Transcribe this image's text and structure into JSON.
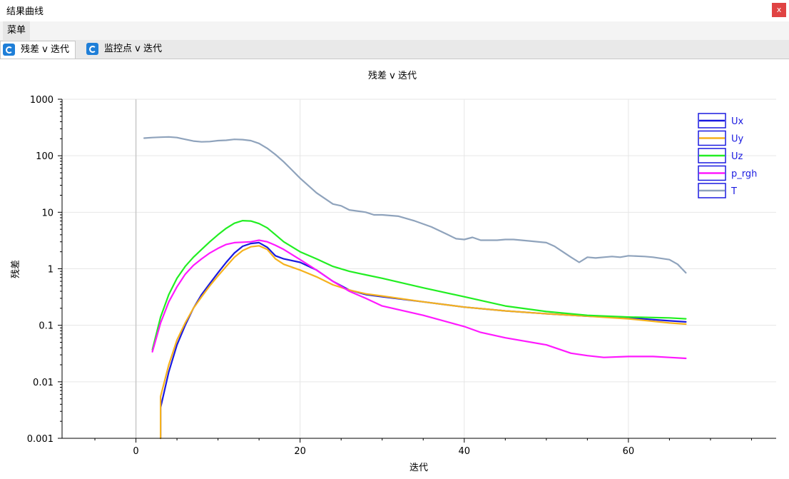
{
  "window": {
    "title": "结果曲线",
    "close_label": "x"
  },
  "menu": {
    "items": [
      "菜单"
    ]
  },
  "tabs": [
    {
      "label": "残差 v 迭代",
      "active": true
    },
    {
      "label": "监控点 v 迭代",
      "active": false
    }
  ],
  "chart_data": {
    "type": "line",
    "title": "残差 v 迭代",
    "xlabel": "迭代",
    "ylabel": "残差",
    "xlim": [
      -9,
      78
    ],
    "ylim": [
      0.001,
      1000
    ],
    "y_scale": "log",
    "x_ticks": [
      0,
      20,
      40,
      60
    ],
    "y_ticks": [
      "1000",
      "100",
      "10",
      "1",
      "0.1",
      "0.01",
      "0.001"
    ],
    "grid": true,
    "legend_position": "top-right",
    "series": [
      {
        "name": "Ux",
        "color": "#1a1ae0",
        "points": [
          [
            3,
            0.001
          ],
          [
            3,
            0.0035
          ],
          [
            4,
            0.015
          ],
          [
            5,
            0.045
          ],
          [
            6,
            0.1
          ],
          [
            7,
            0.2
          ],
          [
            8,
            0.35
          ],
          [
            9,
            0.55
          ],
          [
            10,
            0.85
          ],
          [
            11,
            1.3
          ],
          [
            12,
            1.9
          ],
          [
            13,
            2.5
          ],
          [
            14,
            2.8
          ],
          [
            15,
            2.9
          ],
          [
            16,
            2.4
          ],
          [
            17,
            1.7
          ],
          [
            18,
            1.5
          ],
          [
            20,
            1.3
          ],
          [
            22,
            0.95
          ],
          [
            24,
            0.6
          ],
          [
            26,
            0.42
          ],
          [
            28,
            0.35
          ],
          [
            30,
            0.32
          ],
          [
            35,
            0.26
          ],
          [
            40,
            0.21
          ],
          [
            45,
            0.18
          ],
          [
            50,
            0.16
          ],
          [
            55,
            0.145
          ],
          [
            60,
            0.135
          ],
          [
            65,
            0.12
          ],
          [
            67,
            0.115
          ]
        ]
      },
      {
        "name": "Uy",
        "color": "#f5b21e",
        "points": [
          [
            3,
            0.001
          ],
          [
            3,
            0.0055
          ],
          [
            4,
            0.02
          ],
          [
            5,
            0.055
          ],
          [
            6,
            0.11
          ],
          [
            7,
            0.2
          ],
          [
            8,
            0.32
          ],
          [
            9,
            0.5
          ],
          [
            10,
            0.75
          ],
          [
            11,
            1.1
          ],
          [
            12,
            1.6
          ],
          [
            13,
            2.1
          ],
          [
            14,
            2.45
          ],
          [
            15,
            2.55
          ],
          [
            16,
            2.2
          ],
          [
            17,
            1.5
          ],
          [
            18,
            1.2
          ],
          [
            20,
            0.95
          ],
          [
            22,
            0.72
          ],
          [
            24,
            0.52
          ],
          [
            26,
            0.42
          ],
          [
            28,
            0.36
          ],
          [
            30,
            0.33
          ],
          [
            35,
            0.26
          ],
          [
            40,
            0.21
          ],
          [
            45,
            0.18
          ],
          [
            50,
            0.16
          ],
          [
            55,
            0.145
          ],
          [
            60,
            0.13
          ],
          [
            65,
            0.11
          ],
          [
            67,
            0.105
          ]
        ]
      },
      {
        "name": "Uz",
        "color": "#22ee22",
        "points": [
          [
            2,
            0.037
          ],
          [
            3,
            0.14
          ],
          [
            4,
            0.35
          ],
          [
            5,
            0.68
          ],
          [
            6,
            1.1
          ],
          [
            7,
            1.6
          ],
          [
            8,
            2.2
          ],
          [
            9,
            3.0
          ],
          [
            10,
            4.0
          ],
          [
            11,
            5.2
          ],
          [
            12,
            6.4
          ],
          [
            13,
            7.1
          ],
          [
            14,
            7.0
          ],
          [
            15,
            6.3
          ],
          [
            16,
            5.3
          ],
          [
            17,
            4.0
          ],
          [
            18,
            3.0
          ],
          [
            20,
            2.0
          ],
          [
            22,
            1.5
          ],
          [
            24,
            1.1
          ],
          [
            26,
            0.9
          ],
          [
            28,
            0.78
          ],
          [
            30,
            0.68
          ],
          [
            35,
            0.46
          ],
          [
            40,
            0.32
          ],
          [
            45,
            0.22
          ],
          [
            50,
            0.175
          ],
          [
            55,
            0.15
          ],
          [
            60,
            0.14
          ],
          [
            65,
            0.135
          ],
          [
            67,
            0.13
          ]
        ]
      },
      {
        "name": "p_rgh",
        "color": "#ff19ff",
        "points": [
          [
            2,
            0.034
          ],
          [
            3,
            0.11
          ],
          [
            4,
            0.26
          ],
          [
            5,
            0.48
          ],
          [
            6,
            0.8
          ],
          [
            7,
            1.15
          ],
          [
            8,
            1.5
          ],
          [
            9,
            1.9
          ],
          [
            10,
            2.3
          ],
          [
            11,
            2.7
          ],
          [
            12,
            2.9
          ],
          [
            13,
            2.95
          ],
          [
            14,
            3.0
          ],
          [
            15,
            3.2
          ],
          [
            16,
            3.0
          ],
          [
            17,
            2.6
          ],
          [
            18,
            2.2
          ],
          [
            20,
            1.45
          ],
          [
            22,
            0.95
          ],
          [
            24,
            0.6
          ],
          [
            26,
            0.4
          ],
          [
            28,
            0.3
          ],
          [
            30,
            0.22
          ],
          [
            35,
            0.15
          ],
          [
            40,
            0.095
          ],
          [
            42,
            0.075
          ],
          [
            45,
            0.06
          ],
          [
            50,
            0.045
          ],
          [
            53,
            0.032
          ],
          [
            55,
            0.029
          ],
          [
            57,
            0.027
          ],
          [
            60,
            0.028
          ],
          [
            63,
            0.028
          ],
          [
            65,
            0.027
          ],
          [
            67,
            0.026
          ]
        ]
      },
      {
        "name": "T",
        "color": "#8fa3bc",
        "points": [
          [
            1,
            205
          ],
          [
            2,
            210
          ],
          [
            3,
            213
          ],
          [
            4,
            215
          ],
          [
            5,
            210
          ],
          [
            6,
            195
          ],
          [
            7,
            182
          ],
          [
            8,
            176
          ],
          [
            9,
            178
          ],
          [
            10,
            185
          ],
          [
            11,
            188
          ],
          [
            12,
            195
          ],
          [
            13,
            193
          ],
          [
            14,
            185
          ],
          [
            15,
            165
          ],
          [
            16,
            135
          ],
          [
            17,
            105
          ],
          [
            18,
            78
          ],
          [
            19,
            56
          ],
          [
            20,
            40
          ],
          [
            22,
            22
          ],
          [
            24,
            14
          ],
          [
            25,
            13
          ],
          [
            26,
            11
          ],
          [
            28,
            10
          ],
          [
            29,
            9
          ],
          [
            30,
            9
          ],
          [
            32,
            8.5
          ],
          [
            34,
            7
          ],
          [
            36,
            5.5
          ],
          [
            38,
            4
          ],
          [
            39,
            3.4
          ],
          [
            40,
            3.3
          ],
          [
            41,
            3.6
          ],
          [
            42,
            3.2
          ],
          [
            44,
            3.2
          ],
          [
            45,
            3.3
          ],
          [
            46,
            3.3
          ],
          [
            48,
            3.1
          ],
          [
            50,
            2.9
          ],
          [
            51,
            2.5
          ],
          [
            52,
            2.0
          ],
          [
            53,
            1.6
          ],
          [
            54,
            1.3
          ],
          [
            55,
            1.6
          ],
          [
            56,
            1.55
          ],
          [
            57,
            1.6
          ],
          [
            58,
            1.65
          ],
          [
            59,
            1.6
          ],
          [
            60,
            1.7
          ],
          [
            62,
            1.65
          ],
          [
            63,
            1.6
          ],
          [
            65,
            1.45
          ],
          [
            66,
            1.2
          ],
          [
            67,
            0.85
          ]
        ]
      }
    ]
  }
}
